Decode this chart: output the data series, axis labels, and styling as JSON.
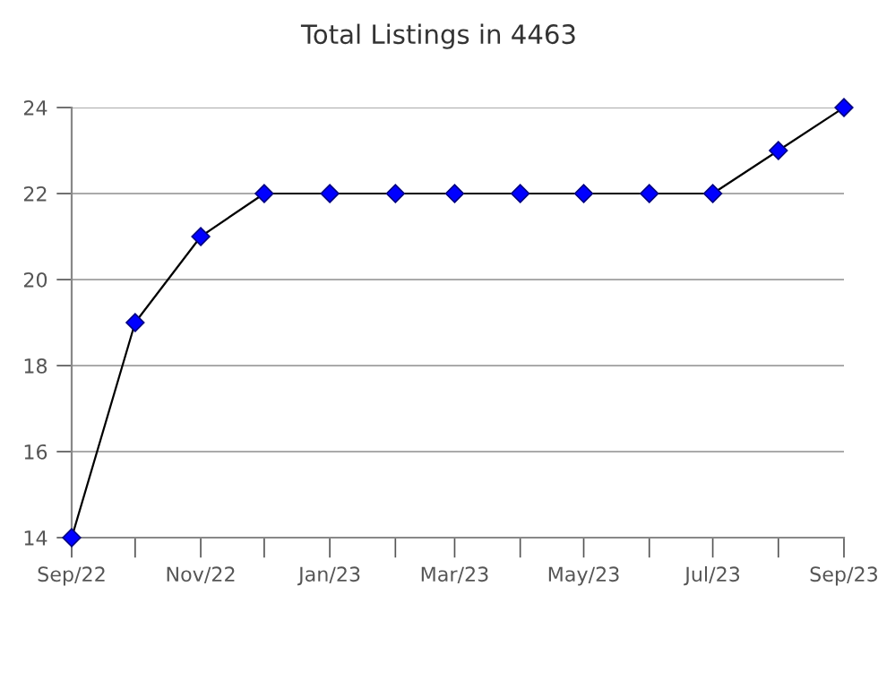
{
  "chart_data": {
    "type": "line",
    "title": "Total Listings in 4463",
    "x": [
      "2022-09",
      "2022-10",
      "2022-11",
      "2022-12",
      "2023-01",
      "2023-02",
      "2023-03",
      "2023-04",
      "2023-05",
      "2023-06",
      "2023-07",
      "2023-08",
      "2023-09"
    ],
    "series": [
      {
        "color": "#0000ff",
        "values": [
          14,
          19,
          21,
          22,
          22,
          22,
          22,
          22,
          22,
          22,
          22,
          23,
          24
        ]
      }
    ],
    "xlim": [
      "2022-09",
      "2023-09"
    ],
    "xticks": [
      {
        "value": "2022-09",
        "label": "Sep/22"
      },
      {
        "value": "2022-10",
        "label": null
      },
      {
        "value": "2022-11",
        "label": "Nov/22"
      },
      {
        "value": "2022-12",
        "label": null
      },
      {
        "value": "2023-01",
        "label": "Jan/23"
      },
      {
        "value": "2023-02",
        "label": null
      },
      {
        "value": "2023-03",
        "label": "Mar/23"
      },
      {
        "value": "2023-04",
        "label": null
      },
      {
        "value": "2023-05",
        "label": "May/23"
      },
      {
        "value": "2023-06",
        "label": null
      },
      {
        "value": "2023-07",
        "label": "Jul/23"
      },
      {
        "value": "2023-08",
        "label": null
      },
      {
        "value": "2023-09",
        "label": "Sep/23"
      }
    ],
    "ylim": [
      14,
      24
    ],
    "yticks": [
      14,
      16,
      18,
      20,
      22,
      24
    ],
    "grid": "y",
    "marker": "diamond",
    "line_style": "solid",
    "legend": false
  }
}
